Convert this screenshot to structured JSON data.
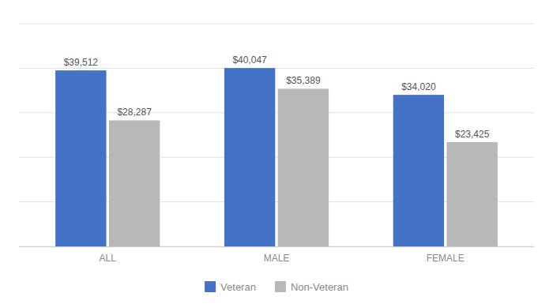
{
  "chart_data": {
    "type": "bar",
    "categories": [
      "ALL",
      "MALE",
      "FEMALE"
    ],
    "series": [
      {
        "name": "Veteran",
        "color": "#4472c4",
        "values": [
          39512,
          40047,
          34020
        ],
        "value_labels": [
          "$39,512",
          "$40,047",
          "$34,020"
        ]
      },
      {
        "name": "Non-Veteran",
        "color": "#b8b8b8",
        "values": [
          28287,
          35389,
          23425
        ],
        "value_labels": [
          "$28,287",
          "$35,389",
          "$23,425"
        ]
      }
    ],
    "ylim": [
      0,
      50000
    ],
    "yticks": [
      0,
      10000,
      20000,
      30000,
      40000,
      50000
    ],
    "grid": true,
    "legend": "bottom",
    "data_labels": true,
    "tick_labels": "x"
  }
}
